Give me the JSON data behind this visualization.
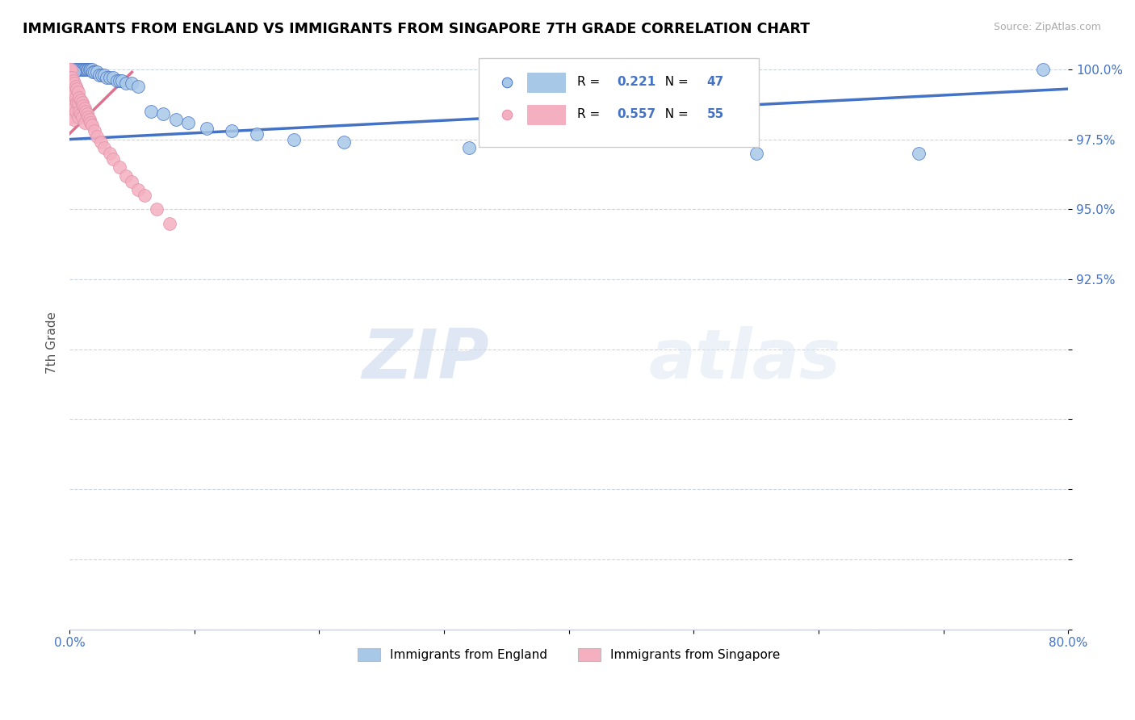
{
  "title": "IMMIGRANTS FROM ENGLAND VS IMMIGRANTS FROM SINGAPORE 7TH GRADE CORRELATION CHART",
  "source_text": "Source: ZipAtlas.com",
  "ylabel_text": "7th Grade",
  "legend_label1": "Immigrants from England",
  "legend_label2": "Immigrants from Singapore",
  "R1": 0.221,
  "N1": 47,
  "R2": 0.557,
  "N2": 55,
  "xlim": [
    0.0,
    0.8
  ],
  "ylim": [
    0.8,
    1.005
  ],
  "xticks": [
    0.0,
    0.1,
    0.2,
    0.3,
    0.4,
    0.5,
    0.6,
    0.7,
    0.8
  ],
  "xticklabels": [
    "0.0%",
    "",
    "",
    "",
    "",
    "",
    "",
    "",
    "80.0%"
  ],
  "yticks": [
    0.8,
    0.825,
    0.85,
    0.875,
    0.9,
    0.925,
    0.95,
    0.975,
    1.0
  ],
  "yticklabels": [
    "",
    "",
    "",
    "",
    "",
    "92.5%",
    "95.0%",
    "97.5%",
    "100.0%"
  ],
  "color_england": "#a8c8e8",
  "color_singapore": "#f4b0c0",
  "trend_color_eng": "#4472c4",
  "trend_color_sing": "#e07090",
  "watermark_zip": "ZIP",
  "watermark_atlas": "atlas",
  "eng_x": [
    0.003,
    0.005,
    0.006,
    0.007,
    0.008,
    0.009,
    0.01,
    0.011,
    0.012,
    0.013,
    0.014,
    0.015,
    0.016,
    0.017,
    0.018,
    0.019,
    0.02,
    0.022,
    0.024,
    0.026,
    0.028,
    0.03,
    0.032,
    0.035,
    0.038,
    0.04,
    0.042,
    0.045,
    0.05,
    0.055,
    0.065,
    0.075,
    0.085,
    0.095,
    0.11,
    0.13,
    0.15,
    0.18,
    0.22,
    0.32,
    0.55,
    0.68,
    0.78,
    0.0,
    0.001,
    0.002,
    0.004
  ],
  "eng_y": [
    1.0,
    1.0,
    1.0,
    1.0,
    1.0,
    1.0,
    1.0,
    1.0,
    1.0,
    1.0,
    1.0,
    1.0,
    1.0,
    1.0,
    1.0,
    0.999,
    0.999,
    0.999,
    0.998,
    0.998,
    0.998,
    0.997,
    0.997,
    0.997,
    0.996,
    0.996,
    0.996,
    0.995,
    0.995,
    0.994,
    0.985,
    0.984,
    0.982,
    0.981,
    0.979,
    0.978,
    0.977,
    0.975,
    0.974,
    0.972,
    0.97,
    0.97,
    1.0,
    0.997,
    0.998,
    0.999,
    0.999
  ],
  "sing_x": [
    0.0,
    0.0,
    0.0,
    0.001,
    0.001,
    0.001,
    0.001,
    0.001,
    0.002,
    0.002,
    0.002,
    0.002,
    0.003,
    0.003,
    0.003,
    0.003,
    0.004,
    0.004,
    0.004,
    0.005,
    0.005,
    0.005,
    0.006,
    0.006,
    0.007,
    0.007,
    0.007,
    0.008,
    0.008,
    0.009,
    0.009,
    0.01,
    0.01,
    0.011,
    0.012,
    0.012,
    0.013,
    0.014,
    0.015,
    0.016,
    0.017,
    0.018,
    0.02,
    0.022,
    0.025,
    0.028,
    0.032,
    0.035,
    0.04,
    0.045,
    0.05,
    0.055,
    0.06,
    0.07,
    0.08
  ],
  "sing_y": [
    1.0,
    0.995,
    0.988,
    1.0,
    0.997,
    0.994,
    0.99,
    0.985,
    0.997,
    0.993,
    0.988,
    0.983,
    0.996,
    0.992,
    0.987,
    0.982,
    0.995,
    0.991,
    0.986,
    0.994,
    0.99,
    0.985,
    0.993,
    0.988,
    0.992,
    0.988,
    0.983,
    0.99,
    0.985,
    0.989,
    0.984,
    0.988,
    0.983,
    0.987,
    0.986,
    0.981,
    0.985,
    0.984,
    0.983,
    0.982,
    0.981,
    0.98,
    0.978,
    0.976,
    0.974,
    0.972,
    0.97,
    0.968,
    0.965,
    0.962,
    0.96,
    0.957,
    0.955,
    0.95,
    0.945
  ],
  "eng_trend_x": [
    0.0,
    0.8
  ],
  "eng_trend_y": [
    0.975,
    0.993
  ],
  "sing_trend_x": [
    0.0,
    0.05
  ],
  "sing_trend_y": [
    0.98,
    0.999
  ]
}
